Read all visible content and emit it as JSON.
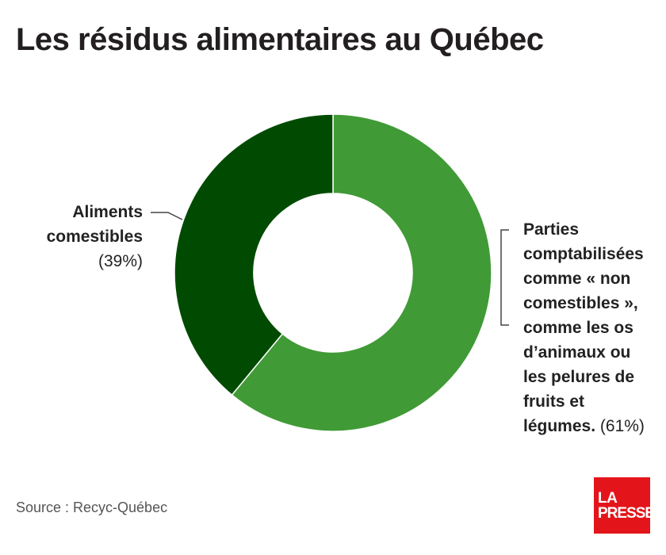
{
  "title": "Les résidus alimentaires au Québec",
  "source": "Source : Recyc-Québec",
  "logo": {
    "line1": "LA",
    "line2": "PRESSE"
  },
  "chart_data": {
    "type": "pie",
    "title": "Les résidus alimentaires au Québec",
    "donut": true,
    "slices": [
      {
        "label_bold": "Parties comptabilisées comme « non comestibles », comme les os d’animaux ou les pelures de fruits et légumes.",
        "label_lines": [
          "Parties",
          "comptabilisées",
          "comme « non",
          "comestibles »,",
          "comme les os",
          "d’animaux ou",
          "les pelures de",
          "fruits et",
          "légumes."
        ],
        "percent_label": "(61%)",
        "value": 61,
        "color": "#409a36"
      },
      {
        "label_bold": "Aliments comestibles",
        "label_lines": [
          "Aliments",
          "comestibles"
        ],
        "percent_label": "(39%)",
        "value": 39,
        "color": "#004b01"
      }
    ]
  }
}
